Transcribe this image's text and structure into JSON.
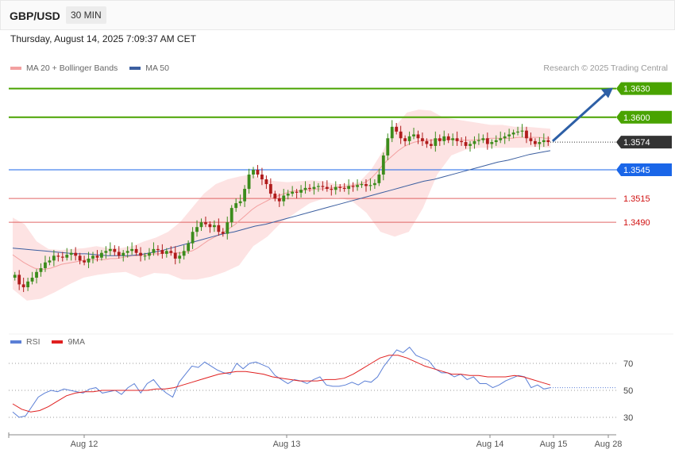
{
  "header": {
    "symbol": "GBP/USD",
    "timeframe": "30 MIN",
    "timestamp": "Thursday, August 14, 2025 7:09:37 AM CET"
  },
  "legend": {
    "ma_label": "MA 20 + Bollinger Bands",
    "ma50_label": "MA 50",
    "credit": "Research © 2025 Trading Central"
  },
  "rsi_legend": {
    "rsi_label": "RSI",
    "ma9_label": "9MA"
  },
  "colors": {
    "green": "#49a300",
    "blue_level": "#1a66e8",
    "red_level": "#e06666",
    "candle_up": "#3c8c1c",
    "candle_down": "#b01c1c",
    "band": "#fde0e0",
    "ma20": "#f3a0a0",
    "ma50": "#3c5fa0",
    "rsi": "#5b7fd6",
    "rsi_ma": "#e02020",
    "arrow": "#2d5fa6",
    "current": "#333333"
  },
  "chart_data": [
    {
      "type": "candlestick",
      "title": "GBP/USD 30 MIN",
      "x_ticks": [
        "Aug 12",
        "Aug 13",
        "Aug 14",
        "Aug 15",
        "Aug 28"
      ],
      "ylim": [
        1.3378,
        1.3648
      ],
      "levels": [
        {
          "value": 1.363,
          "label": "1.3630",
          "kind": "resistance",
          "color": "#49a300"
        },
        {
          "value": 1.36,
          "label": "1.3600",
          "kind": "resistance",
          "color": "#49a300"
        },
        {
          "value": 1.3574,
          "label": "1.3574",
          "kind": "current",
          "color": "#333333"
        },
        {
          "value": 1.3545,
          "label": "1.3545",
          "kind": "pivot",
          "color": "#1a66e8"
        },
        {
          "value": 1.3515,
          "label": "1.3515",
          "kind": "support",
          "color": "#e06666"
        },
        {
          "value": 1.349,
          "label": "1.3490",
          "kind": "support",
          "color": "#e06666"
        }
      ],
      "close": [
        1.3435,
        1.3425,
        1.3422,
        1.3428,
        1.3432,
        1.3438,
        1.3442,
        1.3448,
        1.345,
        1.3455,
        1.3454,
        1.3453,
        1.3456,
        1.3458,
        1.3455,
        1.345,
        1.3448,
        1.3452,
        1.3455,
        1.3453,
        1.3458,
        1.346,
        1.3462,
        1.3459,
        1.3455,
        1.3458,
        1.346,
        1.3462,
        1.3458,
        1.3455,
        1.3455,
        1.3458,
        1.3462,
        1.3461,
        1.3457,
        1.346,
        1.3458,
        1.3452,
        1.3455,
        1.346,
        1.3468,
        1.348,
        1.3485,
        1.349,
        1.3488,
        1.3485,
        1.3487,
        1.348,
        1.3478,
        1.349,
        1.3505,
        1.351,
        1.3512,
        1.3525,
        1.354,
        1.3545,
        1.354,
        1.3535,
        1.353,
        1.352,
        1.3515,
        1.3512,
        1.3518,
        1.352,
        1.3522,
        1.3521,
        1.3524,
        1.3526,
        1.3525,
        1.3527,
        1.3528,
        1.3527,
        1.3525,
        1.3524,
        1.3527,
        1.3526,
        1.3525,
        1.3528,
        1.3527,
        1.3529,
        1.353,
        1.3528,
        1.3529,
        1.3531,
        1.354,
        1.356,
        1.3578,
        1.359,
        1.3585,
        1.3578,
        1.3575,
        1.358,
        1.3582,
        1.3578,
        1.3575,
        1.3572,
        1.357,
        1.3578,
        1.3575,
        1.358,
        1.3576,
        1.3578,
        1.3575,
        1.3574,
        1.357,
        1.3572,
        1.3575,
        1.3576,
        1.3578,
        1.3572,
        1.3574,
        1.3576,
        1.3578,
        1.358,
        1.3582,
        1.3584,
        1.3585,
        1.3586,
        1.3578,
        1.3575,
        1.3572,
        1.3574,
        1.3576,
        1.3574
      ],
      "ma20": [
        1.3456,
        1.3452,
        1.3448,
        1.3445,
        1.3442,
        1.3441,
        1.3441,
        1.3442,
        1.3444,
        1.3446,
        1.3447,
        1.3448,
        1.3449,
        1.345,
        1.3451,
        1.3451,
        1.3451,
        1.3451,
        1.3452,
        1.3452,
        1.3453,
        1.3454,
        1.3455,
        1.3455,
        1.3456,
        1.3456,
        1.3457,
        1.3457,
        1.3458,
        1.3458,
        1.3458,
        1.3458,
        1.3459,
        1.346,
        1.3463,
        1.3467,
        1.3471,
        1.3474,
        1.3477,
        1.348,
        1.3484,
        1.3488,
        1.3493,
        1.3498,
        1.3503,
        1.3507,
        1.351,
        1.3513,
        1.3516,
        1.3518,
        1.352,
        1.3522,
        1.3523,
        1.3523,
        1.3524,
        1.3524,
        1.3525,
        1.3525,
        1.3526,
        1.3526,
        1.3527,
        1.3527,
        1.3528,
        1.3529,
        1.353,
        1.3532,
        1.3536,
        1.3542,
        1.3549,
        1.3555,
        1.356,
        1.3565,
        1.3569,
        1.3572,
        1.3574,
        1.3575,
        1.3576,
        1.3576,
        1.3577,
        1.3577,
        1.3577,
        1.3577,
        1.3576,
        1.3576,
        1.3576,
        1.3576,
        1.3577,
        1.3577,
        1.3578,
        1.3578,
        1.3578,
        1.3578,
        1.3578,
        1.3579,
        1.3579,
        1.3579,
        1.3579,
        1.3579,
        1.3578,
        1.3578
      ],
      "ma50": [
        1.3463,
        1.3462,
        1.3461,
        1.346,
        1.3459,
        1.3458,
        1.3457,
        1.3457,
        1.3456,
        1.3455,
        1.3455,
        1.3455,
        1.3456,
        1.3458,
        1.346,
        1.3463,
        1.3466,
        1.3469,
        1.3472,
        1.3475,
        1.3478,
        1.348,
        1.3483,
        1.3486,
        1.3488,
        1.3491,
        1.3494,
        1.3497,
        1.35,
        1.3503,
        1.3506,
        1.3509,
        1.3512,
        1.3515,
        1.3518,
        1.3521,
        1.3524,
        1.3527,
        1.353,
        1.3533,
        1.3535,
        1.3538,
        1.3541,
        1.3544,
        1.3547,
        1.355,
        1.3553,
        1.3555,
        1.3558,
        1.3561,
        1.3563,
        1.3565
      ],
      "bb_upper": [
        1.3495,
        1.3488,
        1.347,
        1.3462,
        1.3461,
        1.3462,
        1.3463,
        1.3465,
        1.3463,
        1.3463,
        1.3465,
        1.347,
        1.3474,
        1.348,
        1.349,
        1.3505,
        1.352,
        1.353,
        1.3535,
        1.3538,
        1.354,
        1.3535,
        1.3533,
        1.3532,
        1.3533,
        1.3534,
        1.3533,
        1.353,
        1.353,
        1.3532,
        1.3545,
        1.3565,
        1.359,
        1.3605,
        1.3608,
        1.3607,
        1.36,
        1.3598,
        1.3596,
        1.3594,
        1.3592,
        1.3592,
        1.359,
        1.359,
        1.3589,
        1.3588
      ],
      "bb_lower": [
        1.342,
        1.3408,
        1.341,
        1.3417,
        1.3425,
        1.3432,
        1.3435,
        1.3437,
        1.3438,
        1.3432,
        1.3437,
        1.3436,
        1.343,
        1.343,
        1.3433,
        1.3438,
        1.3445,
        1.3465,
        1.3475,
        1.349,
        1.35,
        1.351,
        1.3515,
        1.3516,
        1.3512,
        1.35,
        1.348,
        1.3475,
        1.348,
        1.3505,
        1.354,
        1.356,
        1.3566,
        1.3568,
        1.3568,
        1.3568,
        1.3568,
        1.3569,
        1.3568
      ]
    },
    {
      "type": "line",
      "title": "RSI",
      "ylim": [
        20,
        80
      ],
      "y_ticks": [
        70,
        50,
        30
      ],
      "series": [
        {
          "name": "RSI",
          "values": [
            34,
            30,
            31,
            38,
            45,
            48,
            50,
            49,
            51,
            50,
            49,
            48,
            51,
            52,
            48,
            49,
            50,
            47,
            52,
            55,
            48,
            55,
            58,
            52,
            48,
            45,
            56,
            62,
            68,
            67,
            71,
            68,
            65,
            63,
            62,
            70,
            66,
            70,
            71,
            69,
            67,
            61,
            58,
            55,
            58,
            57,
            55,
            58,
            60,
            54,
            53,
            53,
            54,
            56,
            54,
            57,
            56,
            60,
            68,
            74,
            80,
            78,
            82,
            76,
            74,
            72,
            66,
            63,
            63,
            60,
            62,
            58,
            60,
            55,
            55,
            52,
            54,
            57,
            59,
            61,
            60,
            52,
            54,
            51,
            52
          ],
          "color": "#5b7fd6"
        },
        {
          "name": "9MA",
          "values": [
            40,
            36,
            34,
            35,
            38,
            42,
            46,
            48,
            49,
            49,
            50,
            50,
            50,
            50,
            50,
            50,
            51,
            51,
            52,
            54,
            56,
            58,
            60,
            62,
            63,
            64,
            64,
            63,
            62,
            60,
            59,
            58,
            57,
            57,
            57,
            58,
            58,
            59,
            62,
            66,
            70,
            74,
            76,
            76,
            74,
            71,
            68,
            66,
            64,
            62,
            62,
            61,
            61,
            60,
            60,
            60,
            61,
            60,
            58,
            56,
            54
          ],
          "color": "#e02020"
        }
      ]
    }
  ]
}
